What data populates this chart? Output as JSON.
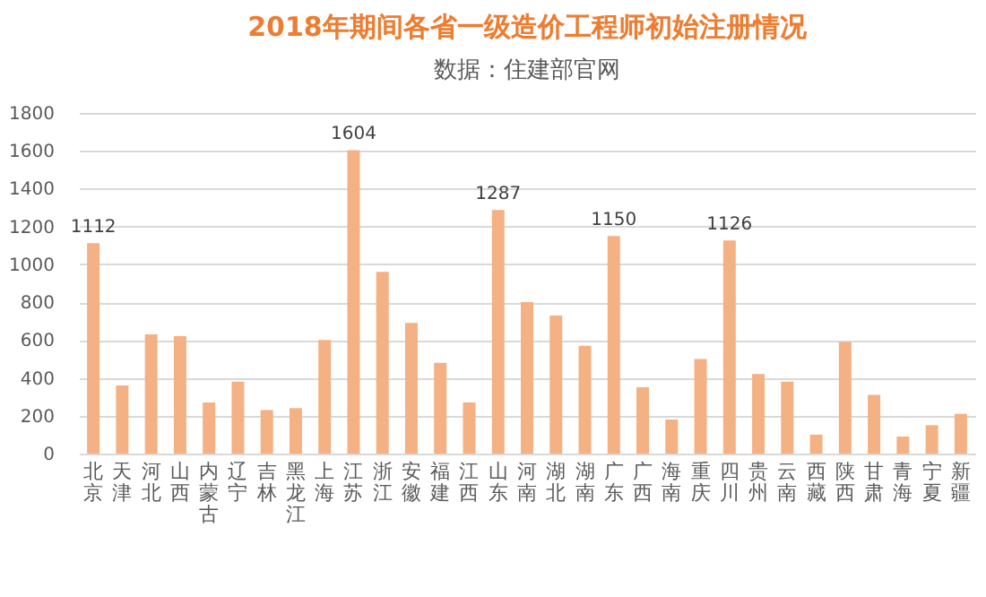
{
  "chart_data": {
    "type": "bar",
    "title": "2018年期间各省一级造价工程师初始注册情况",
    "subtitle": "数据：住建部官网",
    "categories": [
      "北京",
      "天津",
      "河北",
      "山西",
      "内蒙古",
      "辽宁",
      "吉林",
      "黑龙江",
      "上海",
      "江苏",
      "浙江",
      "安徽",
      "福建",
      "江西",
      "山东",
      "河南",
      "湖北",
      "湖南",
      "广东",
      "广西",
      "海南",
      "重庆",
      "四川",
      "贵州",
      "云南",
      "西藏",
      "陕西",
      "甘肃",
      "青海",
      "宁夏",
      "新疆"
    ],
    "values": [
      1112,
      360,
      630,
      620,
      270,
      380,
      230,
      240,
      600,
      1604,
      960,
      690,
      480,
      270,
      1287,
      800,
      730,
      570,
      1150,
      350,
      180,
      500,
      1126,
      420,
      380,
      100,
      590,
      310,
      90,
      150,
      210
    ],
    "value_labels": [
      "1112",
      null,
      null,
      null,
      null,
      null,
      null,
      null,
      null,
      "1604",
      null,
      null,
      null,
      null,
      "1287",
      null,
      null,
      null,
      "1150",
      null,
      null,
      null,
      "1126",
      null,
      null,
      null,
      null,
      null,
      null,
      null,
      null
    ],
    "color": "#f4b183",
    "ylim": [
      0,
      1800
    ],
    "yticks": [
      0,
      200,
      400,
      600,
      800,
      1000,
      1200,
      1400,
      1600,
      1800
    ],
    "grid": "y"
  }
}
